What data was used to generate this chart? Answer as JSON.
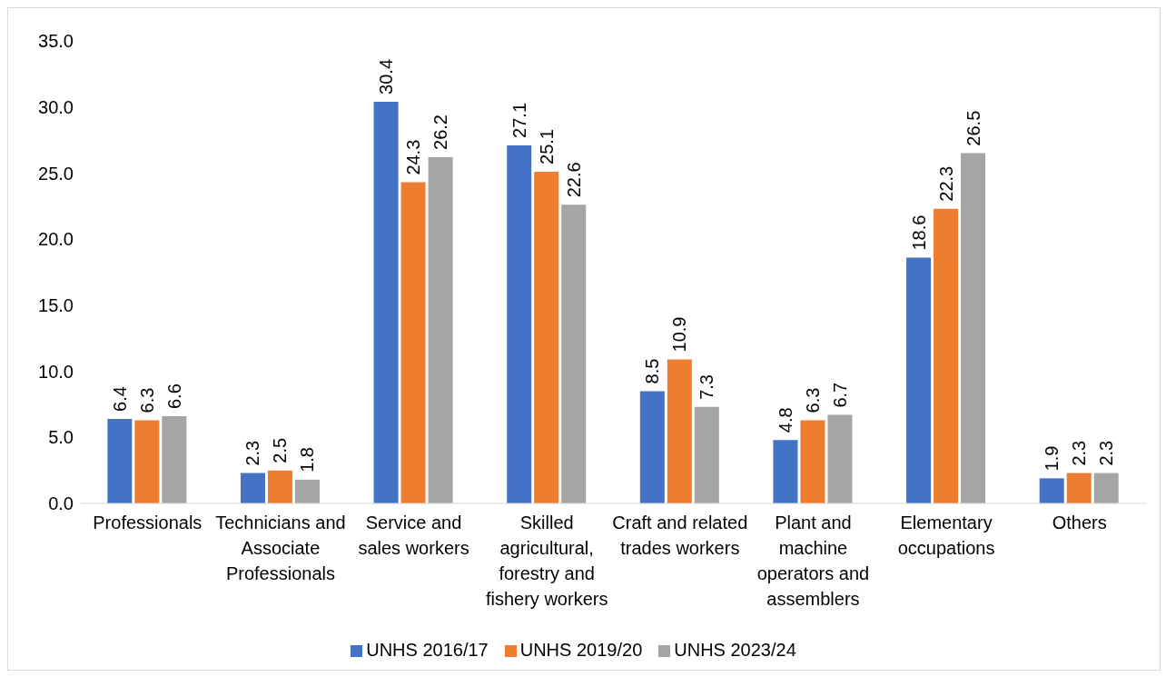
{
  "chart_data": {
    "type": "bar",
    "categories": [
      "Professionals",
      "Technicians and Associate Professionals",
      "Service and sales workers",
      "Skilled agricultural, forestry and fishery workers",
      "Craft and related trades workers",
      "Plant and machine operators and assemblers",
      "Elementary occupations",
      "Others"
    ],
    "series": [
      {
        "name": "UNHS 2016/17",
        "color": "#4472c4",
        "values": [
          6.4,
          2.3,
          30.4,
          27.1,
          8.5,
          4.8,
          18.6,
          1.9
        ]
      },
      {
        "name": "UNHS 2019/20",
        "color": "#ed7d31",
        "values": [
          6.3,
          2.5,
          24.3,
          25.1,
          10.9,
          6.3,
          22.3,
          2.3
        ]
      },
      {
        "name": "UNHS 2023/24",
        "color": "#a5a5a5",
        "values": [
          6.6,
          1.8,
          26.2,
          22.6,
          7.3,
          6.7,
          26.5,
          2.3
        ]
      }
    ],
    "ylim": [
      0,
      35
    ],
    "yticks": [
      {
        "value": 0,
        "label": "0.0"
      },
      {
        "value": 5,
        "label": "5.0"
      },
      {
        "value": 10,
        "label": "10.0"
      },
      {
        "value": 15,
        "label": "15.0"
      },
      {
        "value": 20,
        "label": "20.0"
      },
      {
        "value": 25,
        "label": "25.0"
      },
      {
        "value": 30,
        "label": "30.0"
      },
      {
        "value": 35,
        "label": "35.0"
      }
    ],
    "data_labels": true,
    "grid": false,
    "legend": "bottom"
  }
}
